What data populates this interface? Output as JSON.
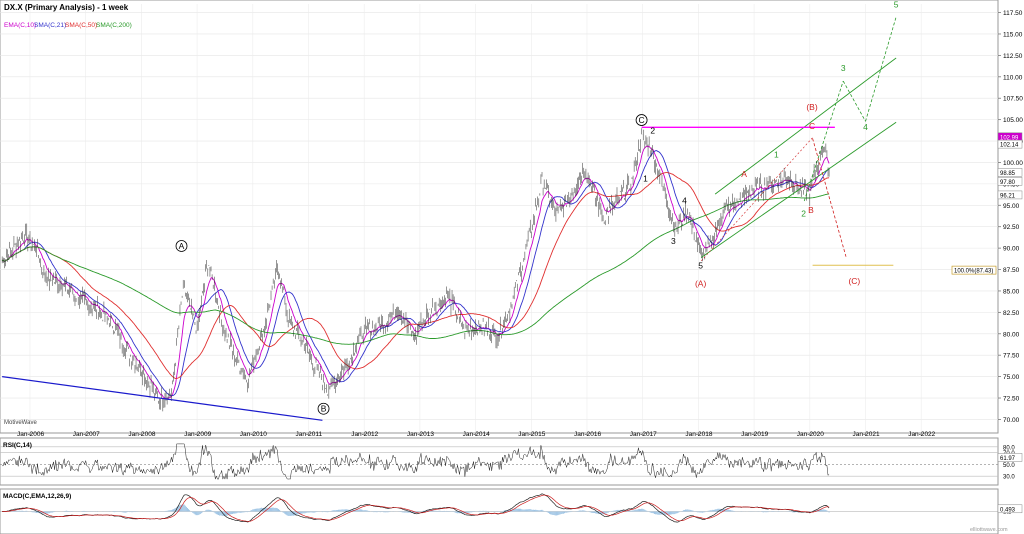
{
  "header": {
    "title": "DX.X (Primary Analysis) - 1 week",
    "legend": [
      {
        "label": "EMA(C,10)",
        "color": "#cc00cc"
      },
      {
        "label": "SMA(C,21)",
        "color": "#3333cc"
      },
      {
        "label": "SMA(C,50)",
        "color": "#e03030"
      },
      {
        "label": "SMA(C,200)",
        "color": "#2a9a2a"
      }
    ],
    "watermark": "MotiveWave",
    "footer_url": "elliottwave.com"
  },
  "chart_data": [
    {
      "type": "line",
      "name": "price",
      "x_ticks": [
        "Jan-2006",
        "Jan-2007",
        "Jan-2008",
        "Jan-2009",
        "Jan-2010",
        "Jan-2011",
        "Jan-2012",
        "Jan-2013",
        "Jan-2014",
        "Jan-2015",
        "Jan-2016",
        "Jan-2017",
        "Jan-2018",
        "Jan-2019",
        "Jan-2020",
        "Jan-2021",
        "Jan-2022"
      ],
      "y_ticks": [
        "117.50",
        "115.00",
        "112.50",
        "110.00",
        "107.50",
        "105.00",
        "102.50",
        "100.00",
        "97.50",
        "95.00",
        "92.50",
        "90.00",
        "87.50",
        "85.00",
        "82.50",
        "80.00",
        "77.50",
        "75.00",
        "72.50",
        "70.00"
      ],
      "ylim": [
        69.0,
        118.5
      ],
      "price_labels": [
        {
          "text": "102.99",
          "value": 103.0,
          "color": "#ffffff",
          "bg": "#cc00cc"
        },
        {
          "text": "102.14",
          "value": 102.14,
          "color": "#000000",
          "bg": "#ffffff"
        },
        {
          "text": "98.85",
          "value": 98.85,
          "color": "#000000",
          "bg": "#ffffff"
        },
        {
          "text": "97.80",
          "value": 97.8,
          "color": "#000000",
          "bg": "#ffffff"
        },
        {
          "text": "96.21",
          "value": 96.21,
          "color": "#000000",
          "bg": "#ffffff"
        }
      ],
      "fib_label": "100.0%(87.43)",
      "fib_value": 87.43,
      "waves": [
        {
          "text": "A",
          "x": 2008.72,
          "y": 89.9,
          "color": "#000000",
          "circle": true
        },
        {
          "text": "B",
          "x": 2011.27,
          "y": 70.9,
          "color": "#000000",
          "circle": true
        },
        {
          "text": "C",
          "x": 2016.98,
          "y": 104.6,
          "color": "#000000",
          "circle": true
        },
        {
          "text": "2",
          "x": 2017.18,
          "y": 103.4,
          "color": "#000000",
          "circle": false
        },
        {
          "text": "1",
          "x": 2017.05,
          "y": 97.8,
          "color": "#000000",
          "circle": false
        },
        {
          "text": "3",
          "x": 2017.55,
          "y": 90.5,
          "color": "#000000",
          "circle": false
        },
        {
          "text": "4",
          "x": 2017.75,
          "y": 95.2,
          "color": "#000000",
          "circle": false
        },
        {
          "text": "5",
          "x": 2018.04,
          "y": 87.6,
          "color": "#000000",
          "circle": false
        },
        {
          "text": "(A)",
          "x": 2018.04,
          "y": 85.5,
          "color": "#d02020",
          "circle": false
        },
        {
          "text": "A",
          "x": 2018.82,
          "y": 98.3,
          "color": "#d02020",
          "circle": false
        },
        {
          "text": "1",
          "x": 2019.4,
          "y": 100.6,
          "color": "#2a9a2a",
          "circle": false
        },
        {
          "text": "2",
          "x": 2019.89,
          "y": 93.7,
          "color": "#2a9a2a",
          "circle": false
        },
        {
          "text": "B",
          "x": 2020.02,
          "y": 94.1,
          "color": "#d02020",
          "circle": false
        },
        {
          "text": "C",
          "x": 2020.04,
          "y": 103.9,
          "color": "#d02020",
          "circle": false
        },
        {
          "text": "(B)",
          "x": 2020.04,
          "y": 106.1,
          "color": "#d02020",
          "circle": false
        },
        {
          "text": "(C)",
          "x": 2020.8,
          "y": 85.8,
          "color": "#d02020",
          "circle": false
        },
        {
          "text": "3",
          "x": 2020.6,
          "y": 110.7,
          "color": "#2a9a2a",
          "circle": false
        },
        {
          "text": "4",
          "x": 2021.0,
          "y": 103.8,
          "color": "#2a9a2a",
          "circle": false
        },
        {
          "text": "5",
          "x": 2021.55,
          "y": 118.1,
          "color": "#2a9a2a",
          "circle": false
        }
      ]
    },
    {
      "type": "line",
      "name": "RSI(C,14)",
      "y_ticks": [
        "80.0",
        "70.0",
        "50.0",
        "30.0"
      ],
      "value_label": "61.97",
      "ylim": [
        20,
        90
      ]
    },
    {
      "type": "line",
      "name": "MACD(C,EMA,12,26,9)",
      "y_ticks": [
        "0.0",
        "0.493"
      ],
      "value_label": "0.493",
      "ylim": [
        -3.5,
        3.5
      ]
    }
  ]
}
